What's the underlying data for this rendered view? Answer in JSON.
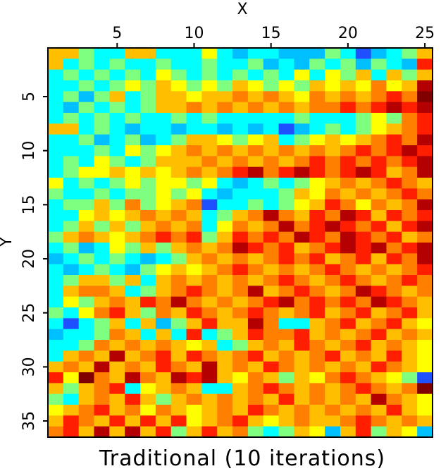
{
  "chart_data": {
    "type": "heatmap",
    "title": "Traditional (10 iterations)",
    "xlabel": "X",
    "ylabel": "Y",
    "x_axis_position": "top",
    "xlim": [
      0.5,
      25.5
    ],
    "ylim": [
      36.5,
      0.5
    ],
    "xticks": [
      5,
      10,
      15,
      20,
      25
    ],
    "yticks": [
      5,
      10,
      15,
      20,
      25,
      30,
      35
    ],
    "colormap": "jet",
    "value_range": [
      0,
      1
    ],
    "palette": [
      "#0000cd",
      "#1e50ff",
      "#00bfff",
      "#00ffff",
      "#7fff7f",
      "#ffff00",
      "#ffbf00",
      "#ff7f00",
      "#ff1e00",
      "#b40000",
      "#800000"
    ],
    "grid": false,
    "x": [
      1,
      2,
      3,
      4,
      5,
      6,
      7,
      8,
      9,
      10,
      11,
      12,
      13,
      14,
      15,
      16,
      17,
      18,
      19,
      20,
      21,
      22,
      23,
      24,
      25
    ],
    "y": [
      1,
      2,
      3,
      4,
      5,
      6,
      7,
      8,
      9,
      10,
      11,
      12,
      13,
      14,
      15,
      16,
      17,
      18,
      19,
      20,
      21,
      22,
      23,
      24,
      25,
      26,
      27,
      28,
      29,
      30,
      31,
      32,
      33,
      34,
      35,
      36
    ],
    "values": [
      [
        0.6,
        0.6,
        0.4,
        0.3,
        0.3,
        0.6,
        0.55,
        0.3,
        0.3,
        0.3,
        0.5,
        0.3,
        0.2,
        0.25,
        0.3,
        0.2,
        0.2,
        0.15,
        0.4,
        0.3,
        0.05,
        0.2,
        0.3,
        0.4,
        0.6
      ],
      [
        0.6,
        0.3,
        0.4,
        0.3,
        0.4,
        0.3,
        0.3,
        0.4,
        0.3,
        0.25,
        0.4,
        0.3,
        0.25,
        0.4,
        0.2,
        0.3,
        0.2,
        0.4,
        0.3,
        0.4,
        0.2,
        0.4,
        0.3,
        0.2,
        0.8
      ],
      [
        0.3,
        0.4,
        0.25,
        0.4,
        0.3,
        0.4,
        0.3,
        0.5,
        0.4,
        0.3,
        0.4,
        0.3,
        0.4,
        0.3,
        0.4,
        0.3,
        0.5,
        0.3,
        0.5,
        0.4,
        0.6,
        0.3,
        0.6,
        0.4,
        0.6
      ],
      [
        0.3,
        0.3,
        0.4,
        0.3,
        0.4,
        0.5,
        0.4,
        0.55,
        0.5,
        0.4,
        0.5,
        0.4,
        0.6,
        0.5,
        0.4,
        0.5,
        0.4,
        0.6,
        0.5,
        0.6,
        0.5,
        0.7,
        0.5,
        0.6,
        0.9
      ],
      [
        0.3,
        0.4,
        0.2,
        0.4,
        0.6,
        0.3,
        0.4,
        0.55,
        0.6,
        0.5,
        0.55,
        0.6,
        0.7,
        0.6,
        0.7,
        0.6,
        0.5,
        0.7,
        0.6,
        0.7,
        0.6,
        0.7,
        0.8,
        0.7,
        1.0
      ],
      [
        0.3,
        0.2,
        0.4,
        0.3,
        0.4,
        0.3,
        0.4,
        0.6,
        0.6,
        0.7,
        0.6,
        0.7,
        0.6,
        0.7,
        0.6,
        0.7,
        0.6,
        0.7,
        0.7,
        0.8,
        0.7,
        0.8,
        0.9,
        0.8,
        0.9
      ],
      [
        0.3,
        0.4,
        0.3,
        0.4,
        0.3,
        0.4,
        0.3,
        0.3,
        0.4,
        0.3,
        0.4,
        0.3,
        0.3,
        0.3,
        0.3,
        0.3,
        0.4,
        0.3,
        0.3,
        0.3,
        0.4,
        0.5,
        0.4,
        0.7,
        0.8
      ],
      [
        0.6,
        0.6,
        0.3,
        0.4,
        0.3,
        0.2,
        0.3,
        0.3,
        0.2,
        0.3,
        0.3,
        0.2,
        0.3,
        0.2,
        0.3,
        0.1,
        0.2,
        0.3,
        0.4,
        0.3,
        0.4,
        0.5,
        0.6,
        0.7,
        0.8
      ],
      [
        0.3,
        0.3,
        0.4,
        0.2,
        0.3,
        0.4,
        0.2,
        0.3,
        0.4,
        0.55,
        0.6,
        0.5,
        0.4,
        0.5,
        0.6,
        0.3,
        0.4,
        0.5,
        0.6,
        0.5,
        0.6,
        0.7,
        0.8,
        0.7,
        0.9
      ],
      [
        0.3,
        0.3,
        0.3,
        0.4,
        0.3,
        0.5,
        0.4,
        0.5,
        0.6,
        0.7,
        0.6,
        0.7,
        0.6,
        0.7,
        0.6,
        0.7,
        0.6,
        0.7,
        0.6,
        0.7,
        0.8,
        0.7,
        0.8,
        0.9,
        0.8
      ],
      [
        0.3,
        0.4,
        0.3,
        0.5,
        0.4,
        0.3,
        0.4,
        0.6,
        0.55,
        0.6,
        0.7,
        0.6,
        0.7,
        0.6,
        0.7,
        0.6,
        0.7,
        0.8,
        0.7,
        0.8,
        0.7,
        0.8,
        0.7,
        0.8,
        0.9
      ],
      [
        0.3,
        0.4,
        0.5,
        0.5,
        0.6,
        0.5,
        0.6,
        0.5,
        0.6,
        0.7,
        0.6,
        0.7,
        0.8,
        0.9,
        0.7,
        0.8,
        0.9,
        0.8,
        0.7,
        0.8,
        0.9,
        0.8,
        0.6,
        0.7,
        0.9
      ],
      [
        0.5,
        0.3,
        0.4,
        0.3,
        0.4,
        0.5,
        0.4,
        0.5,
        0.5,
        0.4,
        0.5,
        0.3,
        0.2,
        0.3,
        0.4,
        0.3,
        0.4,
        0.5,
        0.6,
        0.7,
        0.6,
        0.7,
        0.8,
        0.7,
        0.6
      ],
      [
        0.4,
        0.3,
        0.3,
        0.4,
        0.3,
        0.4,
        0.4,
        0.5,
        0.4,
        0.5,
        0.3,
        0.2,
        0.3,
        0.3,
        0.3,
        0.4,
        0.6,
        0.5,
        0.7,
        0.6,
        0.7,
        0.6,
        0.7,
        0.8,
        0.7
      ],
      [
        0.3,
        0.4,
        0.4,
        0.6,
        0.4,
        0.7,
        0.4,
        0.5,
        0.6,
        0.7,
        0.1,
        0.3,
        0.3,
        0.4,
        0.3,
        0.4,
        0.5,
        0.6,
        0.8,
        0.7,
        0.5,
        0.7,
        0.6,
        0.7,
        0.9
      ],
      [
        0.3,
        0.3,
        0.5,
        0.6,
        0.5,
        0.6,
        0.7,
        0.6,
        0.7,
        0.6,
        0.3,
        0.4,
        0.6,
        0.7,
        0.9,
        0.7,
        0.6,
        0.8,
        0.7,
        0.9,
        0.8,
        0.6,
        0.8,
        0.7,
        0.8
      ],
      [
        0.3,
        0.4,
        0.6,
        0.4,
        0.6,
        0.4,
        0.6,
        0.7,
        0.6,
        0.7,
        0.3,
        0.5,
        0.7,
        0.6,
        0.7,
        0.9,
        0.7,
        0.8,
        0.9,
        0.8,
        0.7,
        0.8,
        0.6,
        0.8,
        0.9
      ],
      [
        0.4,
        0.6,
        0.7,
        0.6,
        0.5,
        0.6,
        0.7,
        0.8,
        0.7,
        0.8,
        0.4,
        0.6,
        0.8,
        0.7,
        0.8,
        0.7,
        0.9,
        0.8,
        0.7,
        0.9,
        0.8,
        0.7,
        0.8,
        0.6,
        0.7
      ],
      [
        0.3,
        0.4,
        0.2,
        0.3,
        0.5,
        0.4,
        0.6,
        0.4,
        0.6,
        0.7,
        0.6,
        0.7,
        0.9,
        0.8,
        0.7,
        0.8,
        0.6,
        0.7,
        0.8,
        0.9,
        0.8,
        0.9,
        0.7,
        0.8,
        0.9
      ],
      [
        0.2,
        0.3,
        0.4,
        0.3,
        0.4,
        0.3,
        0.2,
        0.3,
        0.4,
        0.6,
        0.7,
        0.6,
        0.7,
        0.6,
        0.7,
        0.8,
        0.7,
        0.8,
        0.6,
        0.7,
        0.8,
        0.6,
        0.8,
        0.7,
        0.9
      ],
      [
        0.3,
        0.2,
        0.3,
        0.4,
        0.3,
        0.2,
        0.4,
        0.5,
        0.6,
        0.5,
        0.6,
        0.7,
        0.8,
        0.7,
        0.6,
        0.7,
        0.6,
        0.7,
        0.8,
        0.7,
        0.6,
        0.7,
        0.6,
        0.7,
        0.8
      ],
      [
        0.3,
        0.4,
        0.6,
        0.6,
        0.4,
        0.6,
        0.3,
        0.6,
        0.7,
        0.6,
        0.7,
        0.6,
        0.7,
        0.6,
        0.7,
        0.8,
        0.7,
        0.6,
        0.7,
        0.8,
        0.7,
        0.6,
        0.7,
        0.8,
        0.7
      ],
      [
        0.3,
        0.6,
        0.7,
        0.7,
        0.6,
        0.3,
        0.4,
        0.6,
        0.7,
        0.8,
        0.7,
        0.6,
        0.7,
        0.9,
        0.6,
        0.7,
        0.8,
        0.7,
        0.6,
        0.7,
        0.9,
        0.8,
        0.7,
        0.6,
        0.7
      ],
      [
        0.3,
        0.5,
        0.4,
        0.6,
        0.7,
        0.6,
        0.8,
        0.7,
        0.9,
        0.7,
        0.6,
        0.7,
        0.6,
        0.7,
        0.8,
        0.9,
        0.7,
        0.8,
        0.7,
        0.8,
        0.7,
        0.9,
        0.8,
        0.7,
        0.6
      ],
      [
        0.4,
        0.3,
        0.5,
        0.7,
        0.8,
        0.6,
        0.4,
        0.7,
        0.6,
        0.8,
        0.7,
        0.6,
        0.7,
        0.8,
        0.7,
        0.6,
        0.7,
        0.8,
        0.6,
        0.7,
        0.8,
        0.6,
        0.7,
        0.8,
        0.6
      ],
      [
        0.3,
        0.1,
        0.3,
        0.4,
        0.6,
        0.3,
        0.6,
        0.2,
        0.4,
        0.6,
        0.8,
        0.6,
        0.6,
        0.9,
        0.7,
        0.3,
        0.3,
        0.6,
        0.7,
        0.8,
        0.6,
        0.7,
        0.8,
        0.6,
        0.5
      ],
      [
        0.2,
        0.3,
        0.3,
        0.4,
        0.7,
        0.6,
        0.3,
        0.6,
        0.3,
        0.8,
        0.3,
        0.4,
        0.6,
        0.8,
        0.7,
        0.7,
        0.8,
        0.6,
        0.7,
        0.6,
        0.7,
        0.8,
        0.6,
        0.7,
        0.6
      ],
      [
        0.3,
        0.3,
        0.4,
        0.7,
        0.6,
        0.7,
        0.6,
        0.7,
        0.6,
        0.5,
        0.6,
        0.3,
        0.4,
        0.6,
        0.7,
        0.6,
        0.8,
        0.7,
        0.6,
        0.7,
        0.8,
        0.6,
        0.7,
        0.6,
        0.5
      ],
      [
        0.3,
        0.6,
        0.7,
        0.6,
        0.9,
        0.6,
        0.7,
        0.8,
        0.6,
        0.8,
        0.7,
        0.6,
        0.7,
        0.8,
        0.6,
        0.7,
        0.6,
        0.7,
        0.8,
        0.6,
        0.7,
        0.6,
        0.8,
        0.6,
        0.5
      ],
      [
        0.6,
        0.7,
        0.6,
        0.9,
        0.6,
        0.7,
        0.6,
        0.8,
        0.7,
        0.6,
        0.9,
        0.6,
        0.7,
        0.6,
        0.8,
        0.7,
        0.6,
        0.7,
        0.6,
        0.7,
        0.6,
        0.8,
        0.7,
        0.6,
        0.5
      ],
      [
        0.8,
        0.5,
        1.0,
        0.7,
        0.6,
        0.9,
        0.7,
        0.6,
        0.9,
        0.8,
        0.9,
        0.6,
        0.5,
        0.7,
        0.6,
        0.4,
        0.6,
        0.5,
        0.7,
        0.8,
        0.7,
        0.6,
        0.5,
        0.4,
        0.1
      ],
      [
        0.6,
        0.4,
        0.6,
        0.7,
        0.8,
        0.3,
        0.5,
        0.6,
        0.7,
        0.6,
        0.3,
        0.3,
        0.6,
        0.7,
        0.8,
        0.7,
        0.6,
        0.7,
        0.6,
        0.7,
        0.8,
        0.7,
        0.6,
        0.7,
        1.0
      ],
      [
        0.4,
        0.3,
        0.6,
        0.7,
        0.6,
        0.8,
        0.6,
        0.4,
        0.6,
        0.7,
        0.6,
        0.7,
        0.6,
        0.7,
        0.6,
        0.8,
        0.6,
        0.7,
        0.6,
        0.7,
        0.6,
        0.9,
        0.7,
        0.6,
        0.5
      ],
      [
        0.5,
        0.6,
        0.7,
        0.8,
        0.6,
        0.7,
        0.5,
        0.7,
        0.6,
        0.5,
        0.6,
        0.7,
        0.6,
        0.8,
        0.7,
        0.6,
        0.7,
        0.6,
        0.7,
        0.6,
        0.7,
        0.6,
        0.8,
        0.6,
        0.5
      ],
      [
        0.6,
        0.8,
        0.7,
        0.6,
        0.8,
        0.6,
        0.8,
        0.6,
        0.8,
        0.5,
        0.6,
        0.7,
        0.8,
        0.6,
        0.5,
        0.6,
        0.7,
        0.6,
        0.6,
        0.7,
        0.8,
        0.7,
        0.6,
        0.7,
        0.6
      ],
      [
        0.7,
        0.8,
        0.6,
        0.9,
        0.6,
        0.9,
        0.6,
        0.8,
        0.4,
        0.6,
        0.8,
        0.6,
        0.7,
        0.4,
        0.3,
        0.4,
        0.6,
        0.5,
        0.2,
        0.6,
        0.8,
        0.4,
        0.6,
        0.5,
        0.2
      ]
    ]
  }
}
